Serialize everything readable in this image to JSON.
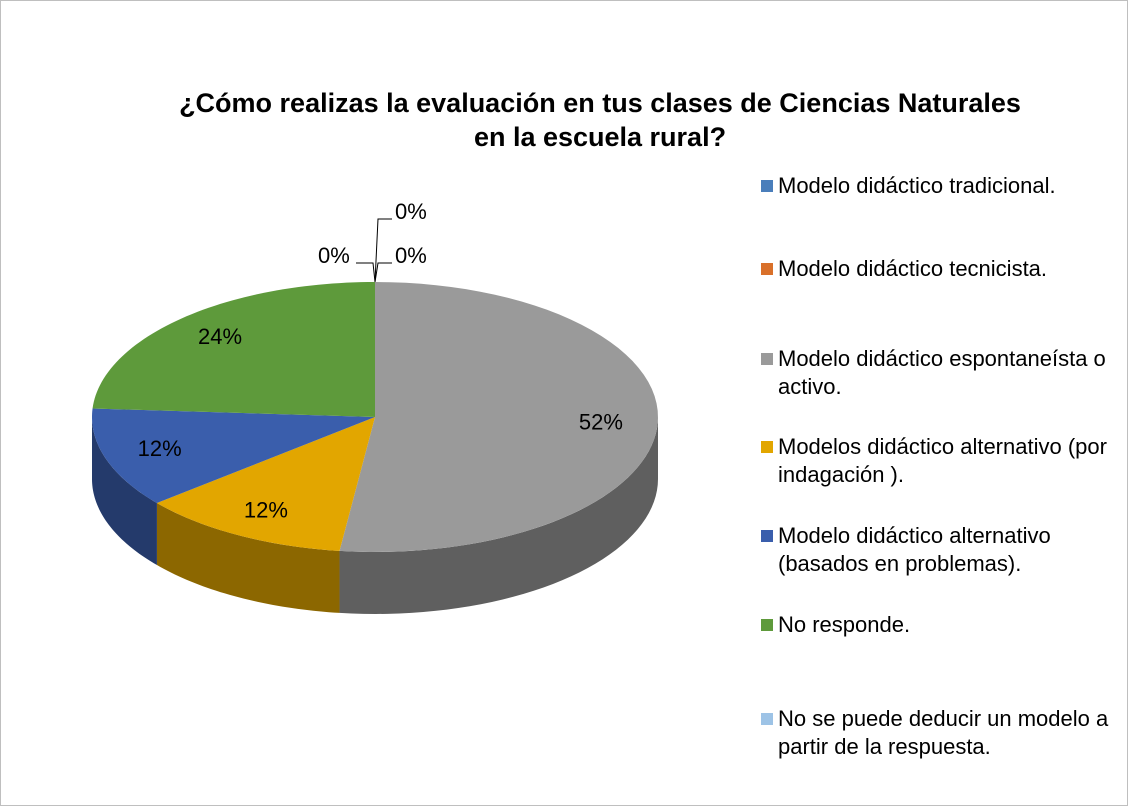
{
  "chart_data": {
    "type": "pie",
    "title": "¿Cómo realizas la evaluación en tus clases de Ciencias Naturales en la escuela rural?",
    "categories": [
      "Modelo didáctico tradicional.",
      "Modelo didáctico tecnicista.",
      "Modelo didáctico espontaneísta o activo.",
      "Modelos didáctico alternativo (por indagación ).",
      "Modelo didáctico alternativo (basados en problemas).",
      "No responde.",
      "No se puede deducir un modelo a partir de la respuesta."
    ],
    "values": [
      0,
      0,
      52,
      12,
      12,
      24,
      0
    ],
    "value_labels": [
      "0%",
      "0%",
      "52%",
      "12%",
      "12%",
      "24%",
      "0%"
    ],
    "colors": [
      "#4a7ebb",
      "#d9702a",
      "#9a9a9a",
      "#e2a600",
      "#3a5eac",
      "#5e9a3b",
      "#9dc3e6"
    ],
    "legend": "right"
  }
}
